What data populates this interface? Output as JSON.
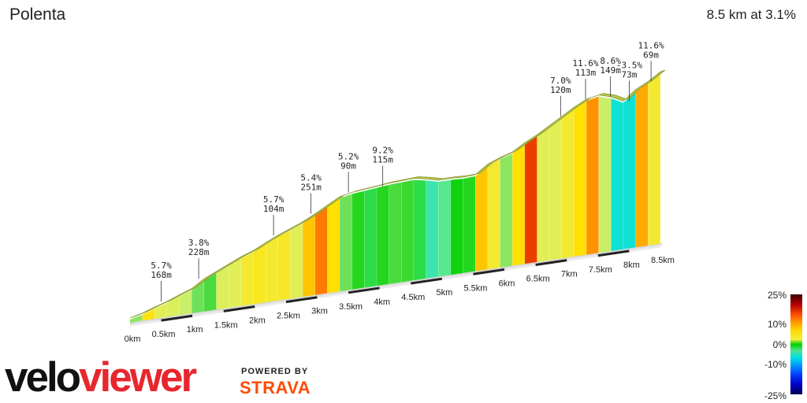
{
  "title": "Polenta",
  "summary": "8.5 km at 3.1%",
  "chart_data": {
    "type": "area",
    "distance_max_km": 8.5,
    "x_ticks": [
      "0km",
      "0.5km",
      "1km",
      "1.5km",
      "2km",
      "2.5km",
      "3km",
      "3.5km",
      "4km",
      "4.5km",
      "5km",
      "5.5km",
      "6km",
      "6.5km",
      "7km",
      "7.5km",
      "8km",
      "8.5km"
    ],
    "elevation_gain_m": [
      0,
      5,
      12,
      18,
      26,
      33,
      46,
      55,
      64,
      73,
      80,
      90,
      99,
      107,
      115,
      125,
      136,
      147,
      151,
      153,
      155,
      157,
      158,
      159,
      155,
      150,
      150,
      149,
      150,
      164,
      172,
      178,
      190,
      200,
      212,
      224,
      236,
      246,
      250,
      244,
      234,
      250,
      260,
      273
    ],
    "segment_gradients_pct": [
      2,
      5.7,
      4,
      3.8,
      3,
      1.5,
      1,
      3.8,
      4,
      5,
      5.4,
      5,
      5.2,
      4,
      7,
      9.2,
      6,
      1.5,
      0.5,
      -0.5,
      0.5,
      1,
      0.8,
      -0.5,
      -2,
      -1,
      0.2,
      0.5,
      7,
      5,
      2,
      6,
      11.6,
      4,
      4,
      5,
      6,
      8.6,
      3,
      -3.5,
      -3.5,
      8,
      5,
      11.6
    ],
    "annotations": [
      {
        "km": 0.5,
        "grade": "5.7%",
        "length": "168m"
      },
      {
        "km": 1.1,
        "grade": "3.8%",
        "length": "228m"
      },
      {
        "km": 2.3,
        "grade": "5.7%",
        "length": "104m"
      },
      {
        "km": 2.9,
        "grade": "5.4%",
        "length": "251m"
      },
      {
        "km": 3.5,
        "grade": "5.2%",
        "length": "90m"
      },
      {
        "km": 4.05,
        "grade": "9.2%",
        "length": "115m"
      },
      {
        "km": 6.9,
        "grade": "7.0%",
        "length": "120m"
      },
      {
        "km": 7.3,
        "grade": "11.6%",
        "length": "113m"
      },
      {
        "km": 7.7,
        "grade": "8.6%",
        "length": "149m"
      },
      {
        "km": 8.0,
        "grade": "-3.5%",
        "length": "73m"
      },
      {
        "km": 8.35,
        "grade": "11.6%",
        "length": "69m"
      }
    ]
  },
  "legend": {
    "ticks": [
      "25%",
      "10%",
      "0%",
      "-10%",
      "-25%"
    ],
    "colors": [
      "#3a0000",
      "#b40000",
      "#ff4a00",
      "#ff9a00",
      "#ffd800",
      "#f3f03c",
      "#00d100",
      "#4fe08a",
      "#00e0e0",
      "#00a0ff",
      "#0040ff",
      "#000050"
    ]
  },
  "branding": {
    "logo_part1": "velo",
    "logo_part2": "viewer",
    "powered_by": "POWERED BY",
    "strava": "STRAVA"
  }
}
